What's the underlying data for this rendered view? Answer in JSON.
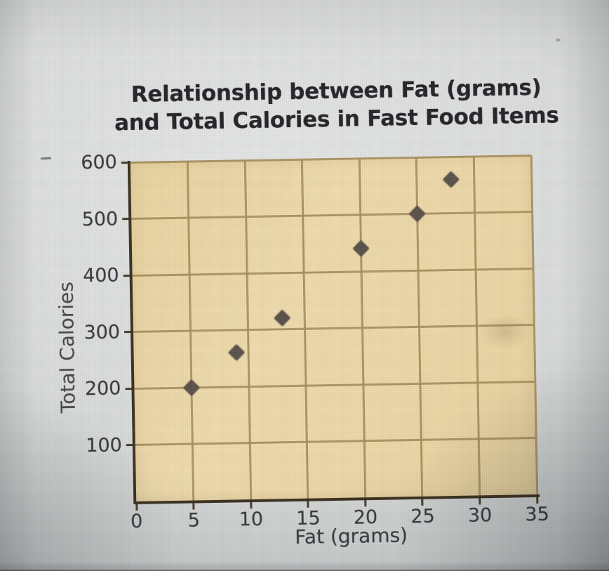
{
  "chart_data": {
    "type": "scatter",
    "title_line1": "Relationship between Fat (grams)",
    "title_line2": "and Total Calories in Fast Food Items",
    "xlabel": "Fat (grams)",
    "ylabel": "Total Calories",
    "xlim": [
      0,
      35
    ],
    "ylim": [
      0,
      600
    ],
    "x_ticks": [
      0,
      5,
      10,
      15,
      20,
      25,
      30,
      35
    ],
    "y_ticks": [
      100,
      200,
      300,
      400,
      500,
      600
    ],
    "grid": true,
    "legend": "none",
    "marker": "diamond",
    "points": [
      {
        "x": 5,
        "y": 200
      },
      {
        "x": 9,
        "y": 260
      },
      {
        "x": 13,
        "y": 320
      },
      {
        "x": 20,
        "y": 440
      },
      {
        "x": 25,
        "y": 500
      },
      {
        "x": 28,
        "y": 560
      }
    ],
    "colors": {
      "page_background": "#d9dbda",
      "plot_background": "#ecd8a7",
      "gridline": "#a58d5c",
      "axis": "#3b3020",
      "marker": "#59514a",
      "title_text": "#232328",
      "tick_text": "#36373a"
    }
  }
}
